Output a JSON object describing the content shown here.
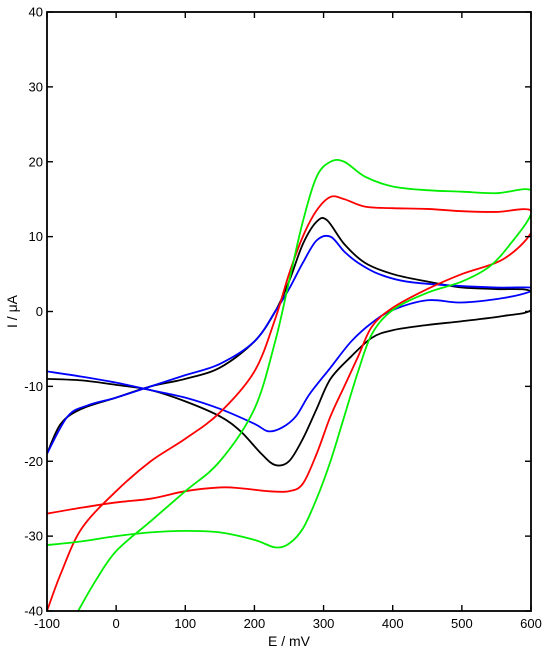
{
  "chart_data": {
    "type": "line",
    "title": "",
    "xlabel": "E / mV",
    "ylabel": "I / μA",
    "xlim": [
      -100,
      600
    ],
    "ylim": [
      -40,
      40
    ],
    "xticks": [
      -100,
      0,
      100,
      200,
      300,
      400,
      500,
      600
    ],
    "yticks": [
      -40,
      -30,
      -20,
      -10,
      0,
      10,
      20,
      30,
      40
    ],
    "grid": false,
    "legend": "none",
    "series": [
      {
        "color": "#000000",
        "points": [
          [
            -100,
            -19
          ],
          [
            -80,
            -15
          ],
          [
            -50,
            -13
          ],
          [
            0,
            -11.5
          ],
          [
            50,
            -10
          ],
          [
            100,
            -9
          ],
          [
            150,
            -7.5
          ],
          [
            200,
            -4
          ],
          [
            230,
            0
          ],
          [
            250,
            4
          ],
          [
            270,
            9
          ],
          [
            290,
            12
          ],
          [
            305,
            12.2
          ],
          [
            330,
            9
          ],
          [
            360,
            6.5
          ],
          [
            400,
            5
          ],
          [
            450,
            4
          ],
          [
            500,
            3.2
          ],
          [
            550,
            3
          ],
          [
            600,
            2.7
          ],
          [
            600,
            0.2
          ],
          [
            560,
            -0.6
          ],
          [
            500,
            -1.3
          ],
          [
            450,
            -1.8
          ],
          [
            400,
            -2.5
          ],
          [
            370,
            -3.5
          ],
          [
            340,
            -6
          ],
          [
            310,
            -9
          ],
          [
            290,
            -13
          ],
          [
            270,
            -17
          ],
          [
            250,
            -20
          ],
          [
            230,
            -20.5
          ],
          [
            210,
            -19
          ],
          [
            180,
            -16
          ],
          [
            150,
            -14
          ],
          [
            100,
            -12
          ],
          [
            50,
            -10.5
          ],
          [
            0,
            -9.8
          ],
          [
            -50,
            -9.2
          ],
          [
            -100,
            -9
          ]
        ]
      },
      {
        "color": "#0000ff",
        "points": [
          [
            -100,
            -19
          ],
          [
            -70,
            -14
          ],
          [
            -40,
            -12.5
          ],
          [
            0,
            -11.5
          ],
          [
            50,
            -10
          ],
          [
            100,
            -8.5
          ],
          [
            150,
            -7
          ],
          [
            200,
            -4
          ],
          [
            230,
            0
          ],
          [
            250,
            3
          ],
          [
            270,
            6.5
          ],
          [
            290,
            9.5
          ],
          [
            310,
            10
          ],
          [
            330,
            8
          ],
          [
            350,
            6.5
          ],
          [
            380,
            5
          ],
          [
            420,
            4
          ],
          [
            480,
            3.5
          ],
          [
            550,
            3.2
          ],
          [
            600,
            3.2
          ],
          [
            600,
            2.7
          ],
          [
            560,
            1.8
          ],
          [
            500,
            1.2
          ],
          [
            450,
            1.5
          ],
          [
            400,
            0.2
          ],
          [
            370,
            -1.5
          ],
          [
            340,
            -4
          ],
          [
            310,
            -7.5
          ],
          [
            280,
            -11
          ],
          [
            260,
            -14
          ],
          [
            240,
            -15.5
          ],
          [
            220,
            -16
          ],
          [
            200,
            -15
          ],
          [
            150,
            -13
          ],
          [
            100,
            -11.5
          ],
          [
            50,
            -10.5
          ],
          [
            0,
            -9.5
          ],
          [
            -50,
            -8.7
          ],
          [
            -100,
            -8
          ]
        ]
      },
      {
        "color": "#ff0000",
        "points": [
          [
            -100,
            -40
          ],
          [
            -80,
            -35
          ],
          [
            -50,
            -29
          ],
          [
            0,
            -24
          ],
          [
            50,
            -20
          ],
          [
            100,
            -17
          ],
          [
            150,
            -13.5
          ],
          [
            200,
            -8
          ],
          [
            230,
            -1
          ],
          [
            250,
            5
          ],
          [
            270,
            10
          ],
          [
            290,
            13.5
          ],
          [
            310,
            15.3
          ],
          [
            330,
            15
          ],
          [
            360,
            14
          ],
          [
            400,
            13.8
          ],
          [
            450,
            13.7
          ],
          [
            500,
            13.4
          ],
          [
            550,
            13.3
          ],
          [
            600,
            13.5
          ],
          [
            600,
            10.5
          ],
          [
            560,
            7
          ],
          [
            500,
            5
          ],
          [
            450,
            3
          ],
          [
            400,
            0.5
          ],
          [
            370,
            -2
          ],
          [
            350,
            -6
          ],
          [
            330,
            -10
          ],
          [
            310,
            -14
          ],
          [
            290,
            -19
          ],
          [
            270,
            -23
          ],
          [
            250,
            -24
          ],
          [
            220,
            -24
          ],
          [
            180,
            -23.6
          ],
          [
            150,
            -23.5
          ],
          [
            100,
            -24
          ],
          [
            50,
            -25
          ],
          [
            0,
            -25.5
          ],
          [
            -50,
            -26.2
          ],
          [
            -100,
            -27
          ]
        ]
      },
      {
        "color": "#00ee00",
        "points": [
          [
            -55,
            -40
          ],
          [
            -30,
            -36
          ],
          [
            0,
            -32
          ],
          [
            50,
            -28
          ],
          [
            100,
            -24
          ],
          [
            150,
            -20
          ],
          [
            200,
            -13
          ],
          [
            230,
            -4
          ],
          [
            250,
            4
          ],
          [
            270,
            12
          ],
          [
            290,
            18
          ],
          [
            310,
            20
          ],
          [
            330,
            20
          ],
          [
            360,
            18
          ],
          [
            400,
            16.7
          ],
          [
            450,
            16.2
          ],
          [
            500,
            16
          ],
          [
            550,
            15.8
          ],
          [
            600,
            16.2
          ],
          [
            600,
            13
          ],
          [
            570,
            9
          ],
          [
            540,
            6
          ],
          [
            500,
            4
          ],
          [
            450,
            2.5
          ],
          [
            400,
            0.2
          ],
          [
            370,
            -3
          ],
          [
            350,
            -8
          ],
          [
            330,
            -14
          ],
          [
            310,
            -20
          ],
          [
            290,
            -25
          ],
          [
            270,
            -29
          ],
          [
            250,
            -31
          ],
          [
            230,
            -31.5
          ],
          [
            200,
            -30.5
          ],
          [
            150,
            -29.5
          ],
          [
            100,
            -29.3
          ],
          [
            50,
            -29.5
          ],
          [
            0,
            -30
          ],
          [
            -50,
            -30.7
          ],
          [
            -100,
            -31.2
          ]
        ]
      }
    ]
  }
}
